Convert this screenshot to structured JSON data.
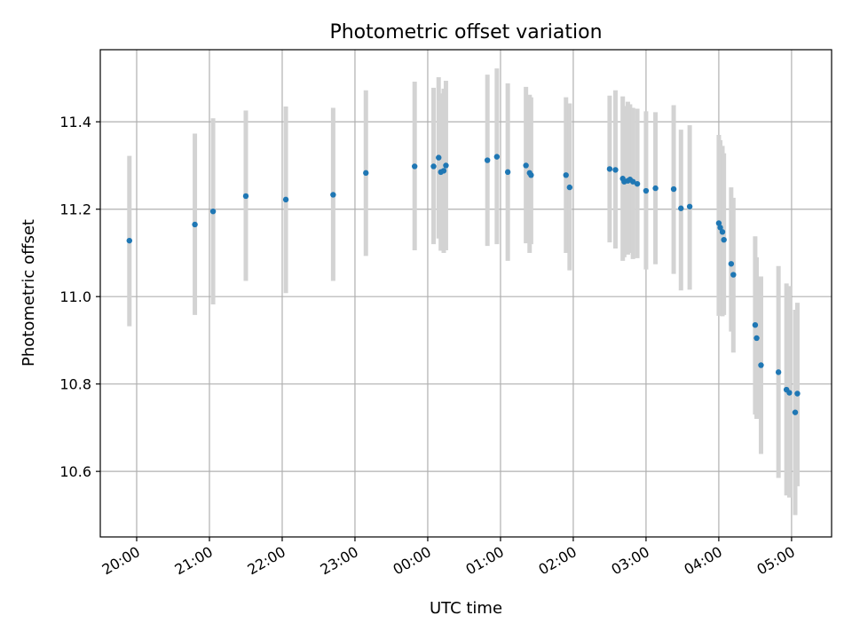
{
  "chart_data": {
    "type": "scatter",
    "title": "Photometric offset variation",
    "xlabel": "UTC time",
    "ylabel": "Photometric offset",
    "x_axis_unit": "hours relative to 00:00 UTC (date axis)",
    "xlim": [
      -4.5,
      5.55
    ],
    "ylim": [
      10.45,
      11.565
    ],
    "grid": true,
    "colors": {
      "points": "#1f77b4",
      "errorbars": "#d3d3d3"
    },
    "x_ticks": [
      {
        "value": -4,
        "label": "20:00"
      },
      {
        "value": -3,
        "label": "21:00"
      },
      {
        "value": -2,
        "label": "22:00"
      },
      {
        "value": -1,
        "label": "23:00"
      },
      {
        "value": 0,
        "label": "00:00"
      },
      {
        "value": 1,
        "label": "01:00"
      },
      {
        "value": 2,
        "label": "02:00"
      },
      {
        "value": 3,
        "label": "03:00"
      },
      {
        "value": 4,
        "label": "04:00"
      },
      {
        "value": 5,
        "label": "05:00"
      }
    ],
    "y_ticks": [
      {
        "value": 10.6,
        "label": "10.6"
      },
      {
        "value": 10.8,
        "label": "10.8"
      },
      {
        "value": 11.0,
        "label": "11.0"
      },
      {
        "value": 11.2,
        "label": "11.2"
      },
      {
        "value": 11.4,
        "label": "11.4"
      }
    ],
    "points": [
      {
        "x": -4.1,
        "y": 11.128,
        "lo": 10.932,
        "hi": 11.322
      },
      {
        "x": -3.2,
        "y": 11.165,
        "lo": 10.958,
        "hi": 11.373
      },
      {
        "x": -2.95,
        "y": 11.195,
        "lo": 10.982,
        "hi": 11.408
      },
      {
        "x": -2.5,
        "y": 11.23,
        "lo": 11.036,
        "hi": 11.426
      },
      {
        "x": -1.95,
        "y": 11.222,
        "lo": 11.008,
        "hi": 11.435
      },
      {
        "x": -1.3,
        "y": 11.233,
        "lo": 11.036,
        "hi": 11.432
      },
      {
        "x": -0.85,
        "y": 11.283,
        "lo": 11.093,
        "hi": 11.472
      },
      {
        "x": -0.18,
        "y": 11.298,
        "lo": 11.106,
        "hi": 11.492
      },
      {
        "x": 0.08,
        "y": 11.298,
        "lo": 11.12,
        "hi": 11.478
      },
      {
        "x": 0.15,
        "y": 11.318,
        "lo": 11.133,
        "hi": 11.502
      },
      {
        "x": 0.18,
        "y": 11.285,
        "lo": 11.105,
        "hi": 11.465
      },
      {
        "x": 0.22,
        "y": 11.288,
        "lo": 11.1,
        "hi": 11.476
      },
      {
        "x": 0.25,
        "y": 11.3,
        "lo": 11.106,
        "hi": 11.494
      },
      {
        "x": 0.82,
        "y": 11.312,
        "lo": 11.116,
        "hi": 11.508
      },
      {
        "x": 0.95,
        "y": 11.32,
        "lo": 11.12,
        "hi": 11.522
      },
      {
        "x": 1.1,
        "y": 11.285,
        "lo": 11.082,
        "hi": 11.488
      },
      {
        "x": 1.35,
        "y": 11.3,
        "lo": 11.122,
        "hi": 11.48
      },
      {
        "x": 1.4,
        "y": 11.283,
        "lo": 11.1,
        "hi": 11.462
      },
      {
        "x": 1.42,
        "y": 11.278,
        "lo": 11.12,
        "hi": 11.456
      },
      {
        "x": 1.9,
        "y": 11.278,
        "lo": 11.1,
        "hi": 11.456
      },
      {
        "x": 1.95,
        "y": 11.25,
        "lo": 11.06,
        "hi": 11.442
      },
      {
        "x": 2.5,
        "y": 11.292,
        "lo": 11.124,
        "hi": 11.46
      },
      {
        "x": 2.58,
        "y": 11.29,
        "lo": 11.11,
        "hi": 11.472
      },
      {
        "x": 2.68,
        "y": 11.27,
        "lo": 11.082,
        "hi": 11.458
      },
      {
        "x": 2.7,
        "y": 11.263,
        "lo": 11.09,
        "hi": 11.436
      },
      {
        "x": 2.75,
        "y": 11.265,
        "lo": 11.096,
        "hi": 11.446
      },
      {
        "x": 2.78,
        "y": 11.268,
        "lo": 11.1,
        "hi": 11.44
      },
      {
        "x": 2.82,
        "y": 11.263,
        "lo": 11.086,
        "hi": 11.432
      },
      {
        "x": 2.88,
        "y": 11.258,
        "lo": 11.088,
        "hi": 11.43
      },
      {
        "x": 3.0,
        "y": 11.242,
        "lo": 11.062,
        "hi": 11.424
      },
      {
        "x": 3.13,
        "y": 11.248,
        "lo": 11.074,
        "hi": 11.422
      },
      {
        "x": 3.38,
        "y": 11.246,
        "lo": 11.052,
        "hi": 11.438
      },
      {
        "x": 3.48,
        "y": 11.202,
        "lo": 11.014,
        "hi": 11.382
      },
      {
        "x": 3.6,
        "y": 11.206,
        "lo": 11.016,
        "hi": 11.392
      },
      {
        "x": 4.0,
        "y": 11.168,
        "lo": 10.956,
        "hi": 11.37
      },
      {
        "x": 4.02,
        "y": 11.158,
        "lo": 10.96,
        "hi": 11.358
      },
      {
        "x": 4.05,
        "y": 11.148,
        "lo": 10.955,
        "hi": 11.345
      },
      {
        "x": 4.07,
        "y": 11.13,
        "lo": 10.958,
        "hi": 11.328
      },
      {
        "x": 4.17,
        "y": 11.075,
        "lo": 10.92,
        "hi": 11.25
      },
      {
        "x": 4.2,
        "y": 11.05,
        "lo": 10.872,
        "hi": 11.226
      },
      {
        "x": 4.5,
        "y": 10.935,
        "lo": 10.73,
        "hi": 11.138
      },
      {
        "x": 4.52,
        "y": 10.905,
        "lo": 10.72,
        "hi": 11.09
      },
      {
        "x": 4.58,
        "y": 10.843,
        "lo": 10.64,
        "hi": 11.046
      },
      {
        "x": 4.82,
        "y": 10.827,
        "lo": 10.585,
        "hi": 11.07
      },
      {
        "x": 4.93,
        "y": 10.787,
        "lo": 10.545,
        "hi": 11.03
      },
      {
        "x": 4.97,
        "y": 10.78,
        "lo": 10.54,
        "hi": 11.024
      },
      {
        "x": 5.05,
        "y": 10.735,
        "lo": 10.5,
        "hi": 10.97
      },
      {
        "x": 5.08,
        "y": 10.778,
        "lo": 10.566,
        "hi": 10.986
      }
    ]
  }
}
